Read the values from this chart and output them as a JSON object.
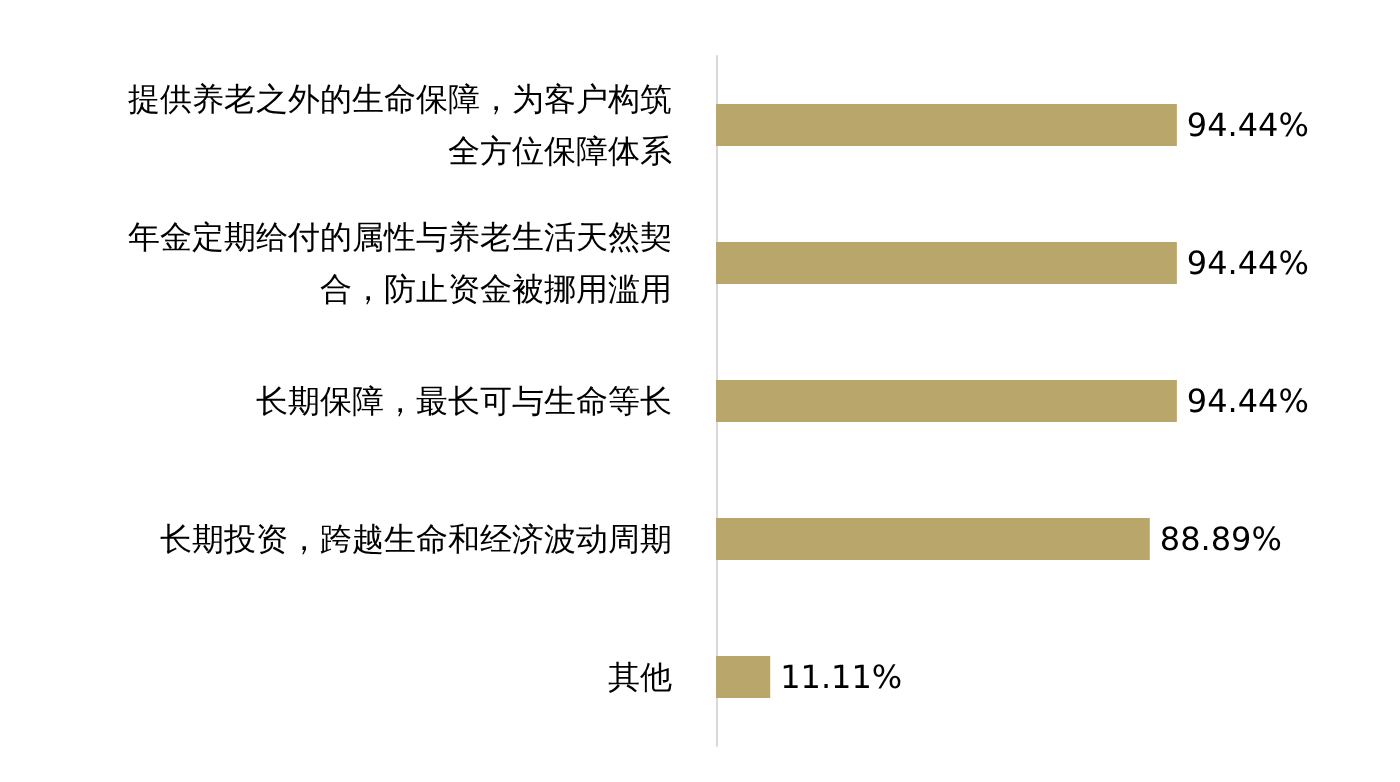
{
  "chart_data": {
    "type": "bar",
    "orientation": "horizontal",
    "categories": [
      "提供养老之外的生命保障，为客户构筑全方位保障体系",
      "年金定期给付的属性与养老生活天然契合，防止资金被挪用滥用",
      "长期保障，最长可与生命等长",
      "长期投资，跨越生命和经济波动周期",
      "其他"
    ],
    "values": [
      94.44,
      94.44,
      94.44,
      88.89,
      11.11
    ],
    "value_labels": [
      "94.44%",
      "94.44%",
      "94.44%",
      "88.89%",
      "11.11%"
    ],
    "color": "#b9a66b",
    "tick_labels": "y"
  }
}
